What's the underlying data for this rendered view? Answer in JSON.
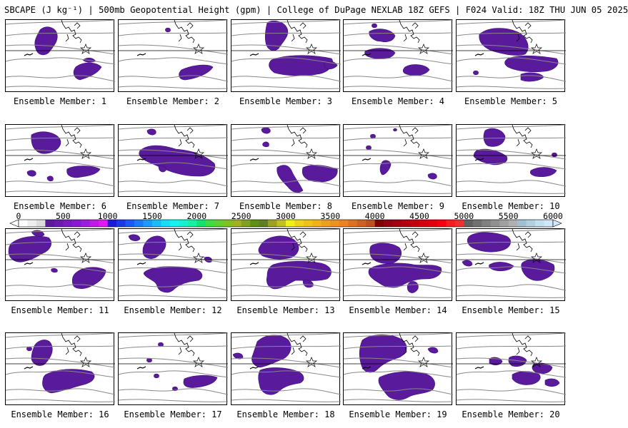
{
  "title": "SBCAPE (J kg⁻¹) | 500mb Geopotential Height (gpm) | College of DuPage NEXLAB 18Z GEFS | F024 Valid: 18Z THU JUN 05 2025",
  "colors": {
    "cape_fill": "#5a1a9c",
    "cape_fill_dark": "#3d0f75",
    "contour": "#888888",
    "coast": "#000000",
    "border": "#000000"
  },
  "colorbar": {
    "tick_labels": [
      "0",
      "500",
      "1000",
      "1500",
      "2000",
      "2500",
      "3000",
      "3500",
      "4000",
      "4500",
      "5000",
      "5500",
      "6000"
    ],
    "min": 0,
    "max": 6000,
    "step": 100,
    "colors": [
      "#ffffff",
      "#eeeeee",
      "#dddddd",
      "#5a1aa0",
      "#6a1ab0",
      "#7a1ac0",
      "#8a1ad0",
      "#a01ae0",
      "#c01ae8",
      "#e01af0",
      "#1a1ad0",
      "#1a3ae0",
      "#1a5af0",
      "#1a7af8",
      "#1a9afa",
      "#1abafc",
      "#1adafe",
      "#1af0f0",
      "#1af0d0",
      "#1af0a0",
      "#1ae070",
      "#3ae040",
      "#60d030",
      "#80c020",
      "#a0b020",
      "#80a020",
      "#609010",
      "#608020",
      "#a0a020",
      "#c0c020",
      "#f0f020",
      "#f0d020",
      "#f0c020",
      "#f0b020",
      "#f0a020",
      "#f09020",
      "#f08020",
      "#e07020",
      "#d06020",
      "#c05020",
      "#800000",
      "#900010",
      "#a00010",
      "#b00010",
      "#c00010",
      "#d00010",
      "#e00010",
      "#f00010",
      "#f02020",
      "#f03030",
      "#606060",
      "#707070",
      "#808080",
      "#909090",
      "#a0a0a0",
      "#b0b0b0",
      "#a0c0d0",
      "#b0d0e0",
      "#c0e0f0",
      "#d0e8f8"
    ]
  },
  "panels": [
    {
      "label": "Ensemble Member: 1"
    },
    {
      "label": "Ensemble Member: 2"
    },
    {
      "label": "Ensemble Member: 3"
    },
    {
      "label": "Ensemble Member: 4"
    },
    {
      "label": "Ensemble Member: 5"
    },
    {
      "label": "Ensemble Member: 6"
    },
    {
      "label": "Ensemble Member: 7"
    },
    {
      "label": "Ensemble Member: 8"
    },
    {
      "label": "Ensemble Member: 9"
    },
    {
      "label": "Ensemble Member: 10"
    },
    {
      "label": "Ensemble Member: 11"
    },
    {
      "label": "Ensemble Member: 12"
    },
    {
      "label": "Ensemble Member: 13"
    },
    {
      "label": "Ensemble Member: 14"
    },
    {
      "label": "Ensemble Member: 15"
    },
    {
      "label": "Ensemble Member: 16"
    },
    {
      "label": "Ensemble Member: 17"
    },
    {
      "label": "Ensemble Member: 18"
    },
    {
      "label": "Ensemble Member: 19"
    },
    {
      "label": "Ensemble Member: 20"
    }
  ]
}
